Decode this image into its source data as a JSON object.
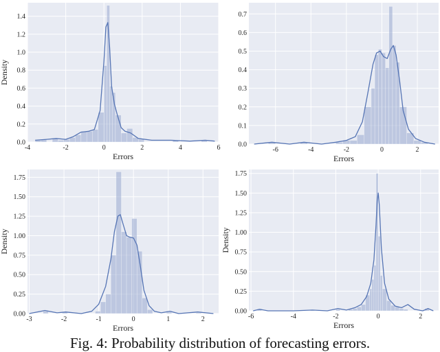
{
  "caption": "Fig. 4: Probability distribution of forecasting errors.",
  "colors": {
    "panel_bg": "#e8ebf3",
    "grid": "#ffffff",
    "bar": "#99a9cf",
    "kde": "#5574b4"
  },
  "chart_data": [
    {
      "type": "bar",
      "xlabel": "Errors",
      "ylabel": "Density",
      "xlim": [
        -4,
        6
      ],
      "ylim": [
        0,
        1.55
      ],
      "xticks": [
        -4,
        -2,
        0,
        2,
        4,
        6
      ],
      "yticks": [
        0.0,
        0.2,
        0.4,
        0.6,
        0.8,
        1.0,
        1.2,
        1.4
      ],
      "grid": true,
      "bins": [
        {
          "x0": -3.6,
          "x1": -3.3,
          "y": 0.02
        },
        {
          "x0": -3.3,
          "x1": -3.0,
          "y": 0.03
        },
        {
          "x0": -2.7,
          "x1": -2.4,
          "y": 0.04
        },
        {
          "x0": -2.4,
          "x1": -2.1,
          "y": 0.02
        },
        {
          "x0": -2.1,
          "x1": -1.8,
          "y": 0.03
        },
        {
          "x0": -1.8,
          "x1": -1.5,
          "y": 0.05
        },
        {
          "x0": -1.5,
          "x1": -1.2,
          "y": 0.08
        },
        {
          "x0": -1.2,
          "x1": -0.9,
          "y": 0.12
        },
        {
          "x0": -0.9,
          "x1": -0.6,
          "y": 0.12
        },
        {
          "x0": -0.6,
          "x1": -0.3,
          "y": 0.14
        },
        {
          "x0": -0.3,
          "x1": 0.0,
          "y": 0.33
        },
        {
          "x0": 0.0,
          "x1": 0.15,
          "y": 0.85
        },
        {
          "x0": 0.15,
          "x1": 0.3,
          "y": 1.52
        },
        {
          "x0": 0.3,
          "x1": 0.45,
          "y": 0.62
        },
        {
          "x0": 0.45,
          "x1": 0.6,
          "y": 0.55
        },
        {
          "x0": 0.6,
          "x1": 0.9,
          "y": 0.3
        },
        {
          "x0": 0.9,
          "x1": 1.2,
          "y": 0.1
        },
        {
          "x0": 1.2,
          "x1": 1.5,
          "y": 0.15
        },
        {
          "x0": 1.5,
          "x1": 1.8,
          "y": 0.05
        },
        {
          "x0": 1.8,
          "x1": 2.1,
          "y": 0.03
        },
        {
          "x0": 3.6,
          "x1": 3.9,
          "y": 0.02
        },
        {
          "x0": 5.1,
          "x1": 5.4,
          "y": 0.02
        }
      ],
      "kde": [
        [
          -3.6,
          0.02
        ],
        [
          -3.0,
          0.03
        ],
        [
          -2.5,
          0.04
        ],
        [
          -2.0,
          0.03
        ],
        [
          -1.6,
          0.06
        ],
        [
          -1.2,
          0.11
        ],
        [
          -0.8,
          0.12
        ],
        [
          -0.5,
          0.14
        ],
        [
          -0.2,
          0.35
        ],
        [
          0.0,
          0.9
        ],
        [
          0.1,
          1.28
        ],
        [
          0.2,
          1.33
        ],
        [
          0.3,
          1.05
        ],
        [
          0.4,
          0.62
        ],
        [
          0.55,
          0.42
        ],
        [
          0.7,
          0.3
        ],
        [
          0.9,
          0.16
        ],
        [
          1.1,
          0.12
        ],
        [
          1.4,
          0.1
        ],
        [
          1.8,
          0.04
        ],
        [
          2.5,
          0.02
        ],
        [
          3.5,
          0.02
        ],
        [
          4.5,
          0.01
        ],
        [
          5.3,
          0.02
        ],
        [
          5.8,
          0.01
        ]
      ]
    },
    {
      "type": "bar",
      "xlabel": "Errors",
      "ylabel": "",
      "xlim": [
        -7.5,
        3.2
      ],
      "ylim": [
        0,
        0.76
      ],
      "xticks": [
        -6,
        -4,
        -2,
        0,
        2
      ],
      "yticks": [
        0.0,
        0.1,
        0.2,
        0.3,
        0.4,
        0.5,
        0.6,
        0.7
      ],
      "grid": true,
      "bins": [
        {
          "x0": -6.4,
          "x1": -6.0,
          "y": 0.01
        },
        {
          "x0": -4.6,
          "x1": -4.2,
          "y": 0.01
        },
        {
          "x0": -2.6,
          "x1": -2.2,
          "y": 0.01
        },
        {
          "x0": -2.2,
          "x1": -1.8,
          "y": 0.02
        },
        {
          "x0": -1.8,
          "x1": -1.4,
          "y": 0.02
        },
        {
          "x0": -1.4,
          "x1": -1.0,
          "y": 0.05
        },
        {
          "x0": -1.0,
          "x1": -0.6,
          "y": 0.2
        },
        {
          "x0": -0.6,
          "x1": -0.4,
          "y": 0.3
        },
        {
          "x0": -0.4,
          "x1": -0.2,
          "y": 0.48
        },
        {
          "x0": -0.2,
          "x1": 0.0,
          "y": 0.51
        },
        {
          "x0": 0.0,
          "x1": 0.2,
          "y": 0.49
        },
        {
          "x0": 0.2,
          "x1": 0.4,
          "y": 0.41
        },
        {
          "x0": 0.4,
          "x1": 0.6,
          "y": 0.74
        },
        {
          "x0": 0.6,
          "x1": 0.8,
          "y": 0.53
        },
        {
          "x0": 0.8,
          "x1": 1.0,
          "y": 0.44
        },
        {
          "x0": 1.0,
          "x1": 1.4,
          "y": 0.2
        },
        {
          "x0": 1.4,
          "x1": 1.8,
          "y": 0.06
        },
        {
          "x0": 1.8,
          "x1": 2.2,
          "y": 0.02
        },
        {
          "x0": 2.2,
          "x1": 2.6,
          "y": 0.01
        }
      ],
      "kde": [
        [
          -7.2,
          0.0
        ],
        [
          -6.2,
          0.01
        ],
        [
          -5.2,
          0.0
        ],
        [
          -4.4,
          0.01
        ],
        [
          -3.4,
          0.0
        ],
        [
          -2.6,
          0.01
        ],
        [
          -2.0,
          0.02
        ],
        [
          -1.5,
          0.04
        ],
        [
          -1.1,
          0.12
        ],
        [
          -0.8,
          0.27
        ],
        [
          -0.5,
          0.43
        ],
        [
          -0.3,
          0.49
        ],
        [
          -0.1,
          0.5
        ],
        [
          0.1,
          0.47
        ],
        [
          0.3,
          0.46
        ],
        [
          0.5,
          0.51
        ],
        [
          0.65,
          0.53
        ],
        [
          0.8,
          0.48
        ],
        [
          1.0,
          0.34
        ],
        [
          1.2,
          0.18
        ],
        [
          1.5,
          0.08
        ],
        [
          1.9,
          0.03
        ],
        [
          2.4,
          0.01
        ],
        [
          3.0,
          0.0
        ]
      ]
    },
    {
      "type": "bar",
      "xlabel": "Errors",
      "ylabel": "Density",
      "xlim": [
        -3.05,
        2.45
      ],
      "ylim": [
        0,
        1.85
      ],
      "xticks": [
        -3,
        -2,
        -1,
        0,
        1,
        2
      ],
      "yticks": [
        0.0,
        0.25,
        0.5,
        0.75,
        1.0,
        1.25,
        1.5,
        1.75
      ],
      "ytick_labels": [
        "0.00",
        "0.25",
        "0.50",
        "0.75",
        "1.00",
        "1.25",
        "1.50",
        "1.75"
      ],
      "grid": true,
      "bins": [
        {
          "x0": -2.6,
          "x1": -2.45,
          "y": 0.03
        },
        {
          "x0": -2.05,
          "x1": -1.9,
          "y": 0.02
        },
        {
          "x0": -1.1,
          "x1": -0.95,
          "y": 0.03
        },
        {
          "x0": -0.95,
          "x1": -0.8,
          "y": 0.15
        },
        {
          "x0": -0.8,
          "x1": -0.65,
          "y": 0.25
        },
        {
          "x0": -0.65,
          "x1": -0.5,
          "y": 0.75
        },
        {
          "x0": -0.5,
          "x1": -0.35,
          "y": 1.82
        },
        {
          "x0": -0.35,
          "x1": -0.2,
          "y": 1.05
        },
        {
          "x0": -0.2,
          "x1": -0.05,
          "y": 0.98
        },
        {
          "x0": -0.05,
          "x1": 0.1,
          "y": 1.22
        },
        {
          "x0": 0.1,
          "x1": 0.25,
          "y": 0.8
        },
        {
          "x0": 0.25,
          "x1": 0.4,
          "y": 0.2
        },
        {
          "x0": 0.4,
          "x1": 0.55,
          "y": 0.05
        },
        {
          "x0": 0.95,
          "x1": 1.1,
          "y": 0.02
        },
        {
          "x0": 1.8,
          "x1": 1.95,
          "y": 0.01
        }
      ],
      "kde": [
        [
          -3.0,
          0.0
        ],
        [
          -2.55,
          0.04
        ],
        [
          -2.2,
          0.01
        ],
        [
          -1.95,
          0.02
        ],
        [
          -1.5,
          0.0
        ],
        [
          -1.2,
          0.03
        ],
        [
          -1.0,
          0.12
        ],
        [
          -0.8,
          0.35
        ],
        [
          -0.65,
          0.7
        ],
        [
          -0.55,
          1.05
        ],
        [
          -0.45,
          1.25
        ],
        [
          -0.38,
          1.27
        ],
        [
          -0.3,
          1.15
        ],
        [
          -0.2,
          1.0
        ],
        [
          -0.1,
          0.98
        ],
        [
          0.0,
          0.97
        ],
        [
          0.1,
          0.88
        ],
        [
          0.2,
          0.6
        ],
        [
          0.3,
          0.3
        ],
        [
          0.45,
          0.1
        ],
        [
          0.6,
          0.03
        ],
        [
          0.8,
          0.01
        ],
        [
          1.05,
          0.03
        ],
        [
          1.3,
          0.0
        ],
        [
          1.85,
          0.02
        ],
        [
          2.3,
          0.0
        ]
      ]
    },
    {
      "type": "bar",
      "xlabel": "Errors",
      "ylabel": "Density",
      "xlim": [
        -6.1,
        2.85
      ],
      "ylim": [
        0,
        1.8
      ],
      "xticks": [
        -6,
        -4,
        -2,
        0,
        2
      ],
      "yticks": [
        0.0,
        0.25,
        0.5,
        0.75,
        1.0,
        1.25,
        1.5,
        1.75
      ],
      "ytick_labels": [
        "0.00",
        "0.25",
        "0.50",
        "0.75",
        "1.00",
        "1.25",
        "1.50",
        "1.75"
      ],
      "grid": true,
      "bins": [
        {
          "x0": -5.7,
          "x1": -5.5,
          "y": 0.02
        },
        {
          "x0": -3.2,
          "x1": -3.0,
          "y": 0.01
        },
        {
          "x0": -2.0,
          "x1": -1.8,
          "y": 0.02
        },
        {
          "x0": -1.4,
          "x1": -1.2,
          "y": 0.02
        },
        {
          "x0": -1.2,
          "x1": -1.0,
          "y": 0.03
        },
        {
          "x0": -1.0,
          "x1": -0.8,
          "y": 0.05
        },
        {
          "x0": -0.8,
          "x1": -0.6,
          "y": 0.08
        },
        {
          "x0": -0.6,
          "x1": -0.4,
          "y": 0.2
        },
        {
          "x0": -0.4,
          "x1": -0.3,
          "y": 0.28
        },
        {
          "x0": -0.3,
          "x1": -0.2,
          "y": 0.4
        },
        {
          "x0": -0.2,
          "x1": -0.1,
          "y": 0.58
        },
        {
          "x0": -0.1,
          "x1": 0.0,
          "y": 1.75
        },
        {
          "x0": 0.0,
          "x1": 0.1,
          "y": 0.95
        },
        {
          "x0": 0.1,
          "x1": 0.2,
          "y": 0.45
        },
        {
          "x0": 0.2,
          "x1": 0.4,
          "y": 0.28
        },
        {
          "x0": 0.4,
          "x1": 0.6,
          "y": 0.13
        },
        {
          "x0": 0.6,
          "x1": 0.8,
          "y": 0.07
        },
        {
          "x0": 0.8,
          "x1": 1.0,
          "y": 0.05
        },
        {
          "x0": 1.0,
          "x1": 1.2,
          "y": 0.03
        },
        {
          "x0": 1.2,
          "x1": 1.4,
          "y": 0.02
        },
        {
          "x0": 2.2,
          "x1": 2.4,
          "y": 0.03
        }
      ],
      "kde": [
        [
          -5.9,
          0.0
        ],
        [
          -5.6,
          0.02
        ],
        [
          -5.2,
          0.0
        ],
        [
          -4.0,
          0.0
        ],
        [
          -3.1,
          0.01
        ],
        [
          -2.4,
          0.0
        ],
        [
          -1.9,
          0.03
        ],
        [
          -1.5,
          0.01
        ],
        [
          -1.1,
          0.04
        ],
        [
          -0.8,
          0.08
        ],
        [
          -0.55,
          0.18
        ],
        [
          -0.35,
          0.35
        ],
        [
          -0.2,
          0.65
        ],
        [
          -0.1,
          1.1
        ],
        [
          -0.05,
          1.4
        ],
        [
          0.0,
          1.5
        ],
        [
          0.05,
          1.35
        ],
        [
          0.15,
          0.8
        ],
        [
          0.3,
          0.35
        ],
        [
          0.5,
          0.15
        ],
        [
          0.8,
          0.06
        ],
        [
          1.1,
          0.04
        ],
        [
          1.4,
          0.08
        ],
        [
          1.7,
          0.02
        ],
        [
          2.1,
          0.0
        ],
        [
          2.35,
          0.03
        ],
        [
          2.6,
          0.0
        ]
      ]
    }
  ]
}
